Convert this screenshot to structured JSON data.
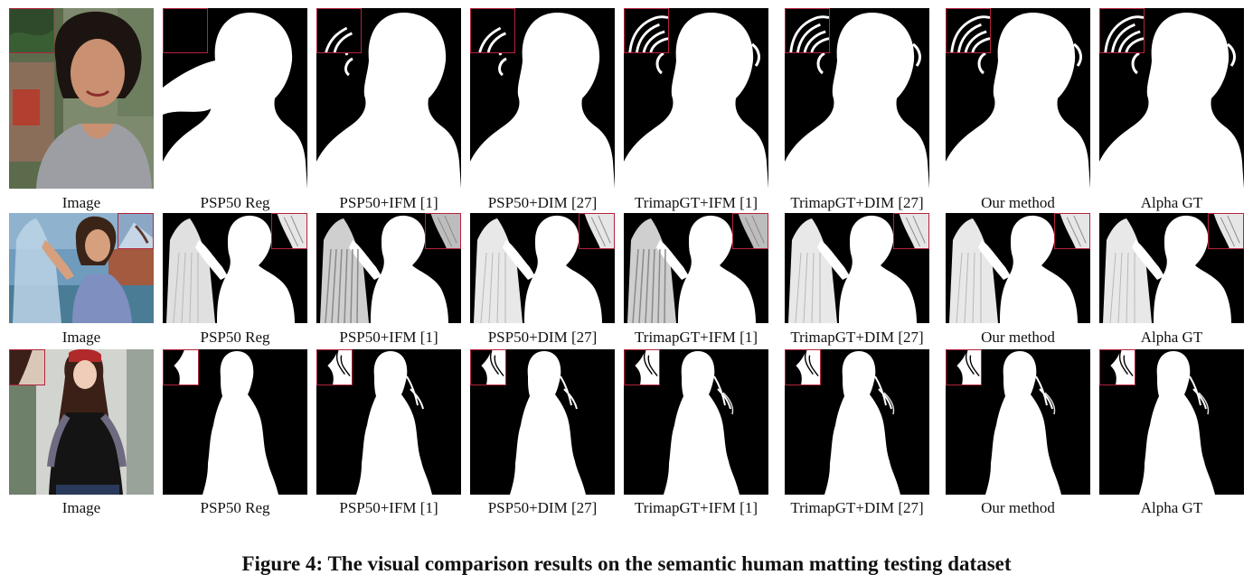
{
  "figure": {
    "caption": "Figure 4:  The visual comparison results on the semantic human matting testing dataset",
    "rows": [
      {
        "labels": [
          "Image",
          "PSP50 Reg",
          "PSP50+IFM [1]",
          "PSP50+DIM [27]",
          "TrimapGT+IFM [1]",
          "TrimapGT+DIM [27]",
          "Our method",
          "Alpha GT"
        ]
      },
      {
        "labels": [
          "Image",
          "PSP50 Reg",
          "PSP50+IFM [1]",
          "PSP50+DIM [27]",
          "TrimapGT+IFM [1]",
          "TrimapGT+DIM [27]",
          "Our method",
          "Alpha GT"
        ]
      },
      {
        "labels": [
          "Image",
          "PSP50 Reg",
          "PSP50+IFM [1]",
          "PSP50+DIM [27]",
          "TrimapGT+IFM [1]",
          "TrimapGT+DIM [27]",
          "Our method",
          "Alpha GT"
        ]
      }
    ],
    "colors": {
      "inset_border": "#b4233c",
      "matte_bg": "#000000",
      "matte_fg": "#ffffff"
    }
  }
}
